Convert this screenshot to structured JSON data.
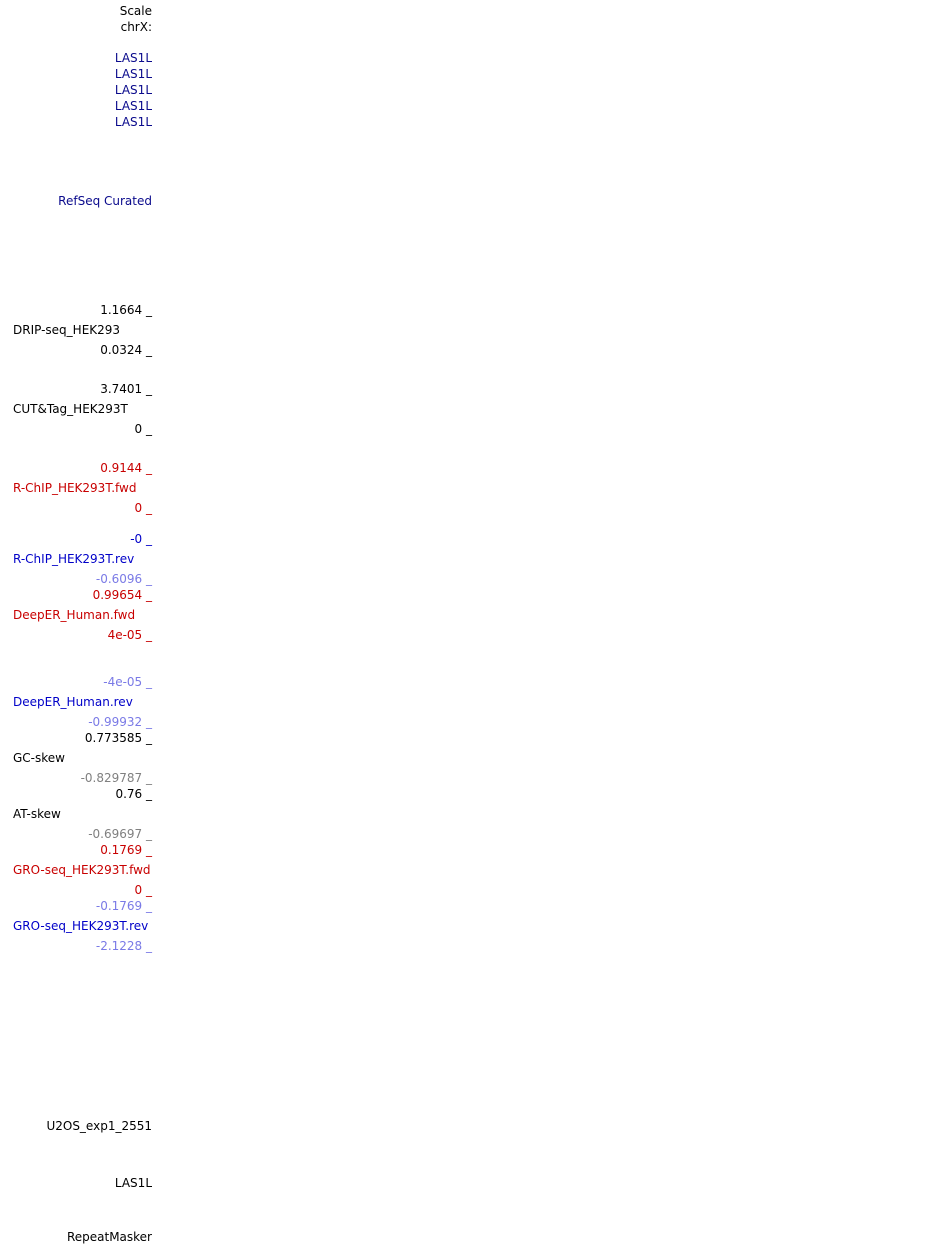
{
  "header": {
    "scale": "Scale",
    "chrom": "chrX:"
  },
  "gene_labels": [
    "LAS1L",
    "LAS1L",
    "LAS1L",
    "LAS1L",
    "LAS1L"
  ],
  "refseq": {
    "label": "RefSeq Curated"
  },
  "tracks": {
    "drip": {
      "max": "1.1664 _",
      "name": "DRIP-seq_HEK293",
      "min": "0.0324 _"
    },
    "cuttag": {
      "max": "3.7401 _",
      "name": "CUT&Tag_HEK293T",
      "min": "0 _"
    },
    "rchip_fwd": {
      "max": "0.9144 _",
      "name": "R-ChIP_HEK293T.fwd",
      "min": "0 _"
    },
    "rchip_rev": {
      "max": "-0 _",
      "name": "R-ChIP_HEK293T.rev",
      "min": "-0.6096 _"
    },
    "deeper_fwd": {
      "max": "0.99654 _",
      "name": "DeepER_Human.fwd",
      "min": "4e-05 _"
    },
    "deeper_rev": {
      "max": "-4e-05 _",
      "name": "DeepER_Human.rev",
      "min": "-0.99932 _"
    },
    "gcskew": {
      "max": "0.773585 _",
      "name": "GC-skew",
      "min": "-0.829787 _"
    },
    "atskew": {
      "max": "0.76 _",
      "name": "AT-skew",
      "min": "-0.69697 _"
    },
    "gro_fwd": {
      "max": "0.1769 _",
      "name": "GRO-seq_HEK293T.fwd",
      "min": "0 _"
    },
    "gro_rev": {
      "max": "-0.1769 _",
      "name": "GRO-seq_HEK293T.rev",
      "min": "-2.1228 _"
    }
  },
  "bottom": {
    "u2os": "U2OS_exp1_2551",
    "las1l": "LAS1L",
    "repeatmasker": "RepeatMasker"
  },
  "colors": {
    "navy": "#0a0a8c",
    "blue": "#0000c8",
    "red": "#c80000",
    "lightblue": "#7a7ae6",
    "gray": "#808080"
  }
}
